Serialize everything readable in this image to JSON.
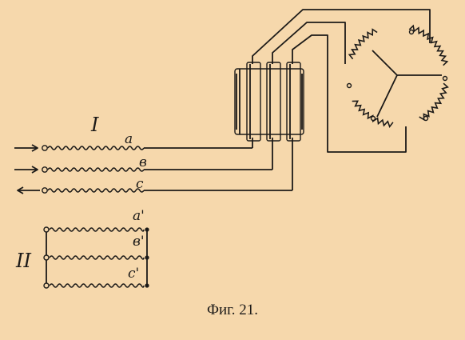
{
  "figure": {
    "caption": "Фиг. 21.",
    "group_one_label": "I",
    "group_two_label": "II",
    "group_one_windings": [
      "a",
      "в",
      "c"
    ],
    "group_two_windings": [
      "a'",
      "в'",
      "c'"
    ]
  },
  "colors": {
    "background": "#f6d8ac",
    "ink": "#1c1a18"
  }
}
